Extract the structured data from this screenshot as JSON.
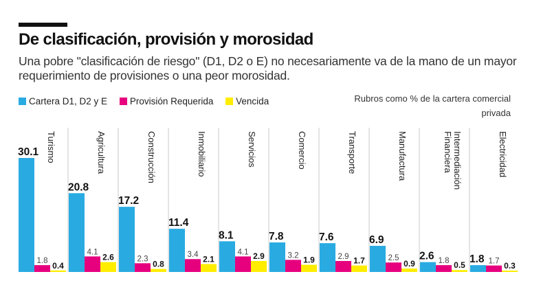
{
  "title": "De clasificación, provisión y morosidad",
  "subtitle": "Una pobre \"clasificación de riesgo\" (D1, D2 o E) no necesariamente va de la mano de un mayor requerimiento de provisiones o una peor morosidad.",
  "note": "Rubros como % de la cartera comercial privada",
  "chart_data": {
    "type": "bar",
    "title": "De clasificación, provisión y morosidad",
    "categories": [
      "Turismo",
      "Agricultura",
      "Construcción",
      "Inmobiliario",
      "Servicios",
      "Comercio",
      "Transporte",
      "Manufactura",
      "Intermediación Financiera",
      "Electricidad"
    ],
    "series": [
      {
        "name": "Cartera D1, D2 y E",
        "color": "#29abe2",
        "values": [
          30.1,
          20.8,
          17.2,
          11.4,
          8.1,
          7.8,
          7.6,
          6.9,
          2.6,
          1.8
        ]
      },
      {
        "name": "Provisión Requerida",
        "color": "#e6007e",
        "values": [
          1.8,
          4.1,
          2.3,
          3.4,
          4.1,
          3.2,
          2.9,
          2.5,
          1.8,
          1.7
        ]
      },
      {
        "name": "Vencida",
        "color": "#ffed00",
        "values": [
          0.4,
          2.6,
          0.8,
          2.1,
          2.9,
          1.9,
          1.7,
          0.9,
          0.5,
          0.3
        ]
      }
    ],
    "legend_position": "top-left",
    "grid": false,
    "ylim": [
      0,
      30.1
    ]
  }
}
